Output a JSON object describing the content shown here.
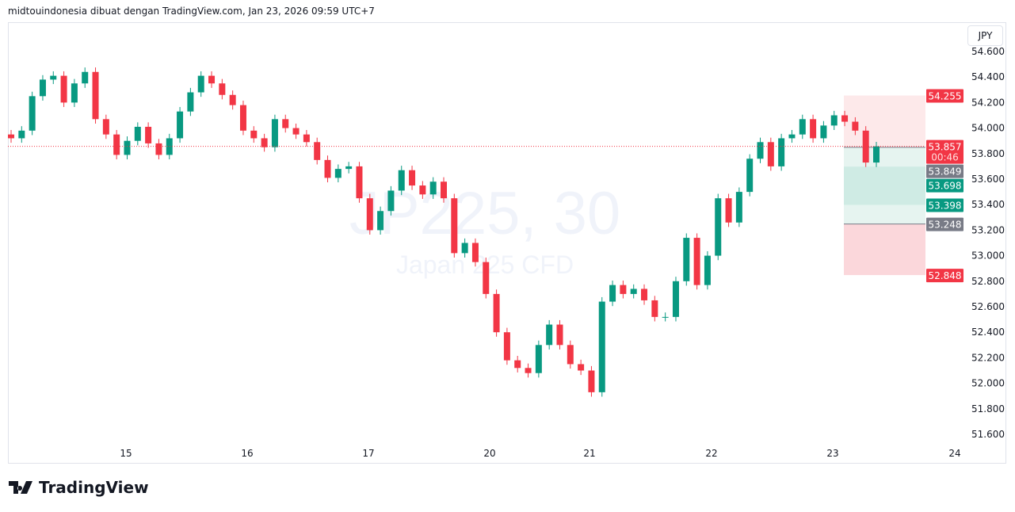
{
  "header": {
    "caption": "midtouindonesia dibuat dengan TradingView.com, Jan 23, 2026 09:59 UTC+7"
  },
  "currency": "JPY",
  "watermark": {
    "symbol": "JP225, 30",
    "description": "Japan 225 CFD"
  },
  "logo": {
    "text": "TradingView"
  },
  "colors": {
    "up": "#089981",
    "down": "#f23645",
    "neutral": "#787b86"
  },
  "chart_data": {
    "type": "candlestick",
    "symbol": "JP225",
    "interval": "30",
    "ylim": [
      51.5,
      54.7
    ],
    "y_ticks": [
      "51.600",
      "51.800",
      "52.000",
      "52.200",
      "52.400",
      "52.600",
      "52.800",
      "53.000",
      "53.200",
      "53.400",
      "53.600",
      "53.800",
      "54.000",
      "54.200",
      "54.400",
      "54.600"
    ],
    "x_ticks": [
      "15",
      "16",
      "17",
      "20",
      "21",
      "22",
      "23",
      "24"
    ],
    "open_first": 53.95,
    "close": [
      53.92,
      53.98,
      54.25,
      54.38,
      54.41,
      54.2,
      54.35,
      54.44,
      54.07,
      53.95,
      53.79,
      53.9,
      54.01,
      53.88,
      53.79,
      53.92,
      54.13,
      54.28,
      54.41,
      54.35,
      54.26,
      54.18,
      53.98,
      53.92,
      53.85,
      54.07,
      54.0,
      53.95,
      53.89,
      53.75,
      53.61,
      53.68,
      53.7,
      53.45,
      53.2,
      53.35,
      53.51,
      53.67,
      53.55,
      53.48,
      53.58,
      53.45,
      53.02,
      53.1,
      52.95,
      52.7,
      52.4,
      52.18,
      52.12,
      52.08,
      52.3,
      52.46,
      52.3,
      52.15,
      52.1,
      51.93,
      52.64,
      52.77,
      52.7,
      52.74,
      52.65,
      52.52,
      52.52,
      52.8,
      53.14,
      52.77,
      53.0,
      53.45,
      53.26,
      53.5,
      53.76,
      53.89,
      53.7,
      53.92,
      53.95,
      54.07,
      53.92,
      54.02,
      54.1,
      54.05,
      53.98,
      53.73,
      53.857
    ],
    "last_price": {
      "value": "53.857",
      "countdown": "00:46"
    },
    "position": {
      "target": "54.255",
      "entry": "53.849",
      "take_profit_zone_top": "53.698",
      "take_profit_zone_bottom": "53.398",
      "stop_line": "53.248",
      "stop": "52.848"
    }
  }
}
